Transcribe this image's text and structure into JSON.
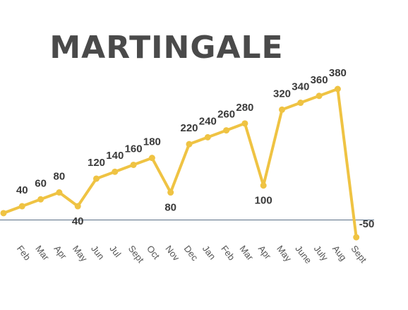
{
  "chart_data": {
    "type": "line",
    "title": "MARTINGALE",
    "categories": [
      null,
      "Feb",
      "Mar",
      "Apr",
      "May",
      "Jun",
      "Jul",
      "Sept",
      "Oct",
      "Nov",
      "Dec",
      "Jan",
      "Feb",
      "Mar",
      "Apr",
      "May",
      "June",
      "July",
      "Aug",
      "Sept"
    ],
    "values": [
      20,
      40,
      60,
      80,
      40,
      120,
      140,
      160,
      180,
      80,
      220,
      240,
      260,
      280,
      100,
      320,
      340,
      360,
      380,
      -50
    ],
    "value_labels": [
      null,
      "40",
      "60",
      "80",
      "40",
      "120",
      "140",
      "160",
      "180",
      "80",
      "220",
      "240",
      "260",
      "280",
      "100",
      "320",
      "340",
      "360",
      "380",
      "-50"
    ],
    "color": "#efc343",
    "ylim": [
      -50,
      380
    ]
  }
}
